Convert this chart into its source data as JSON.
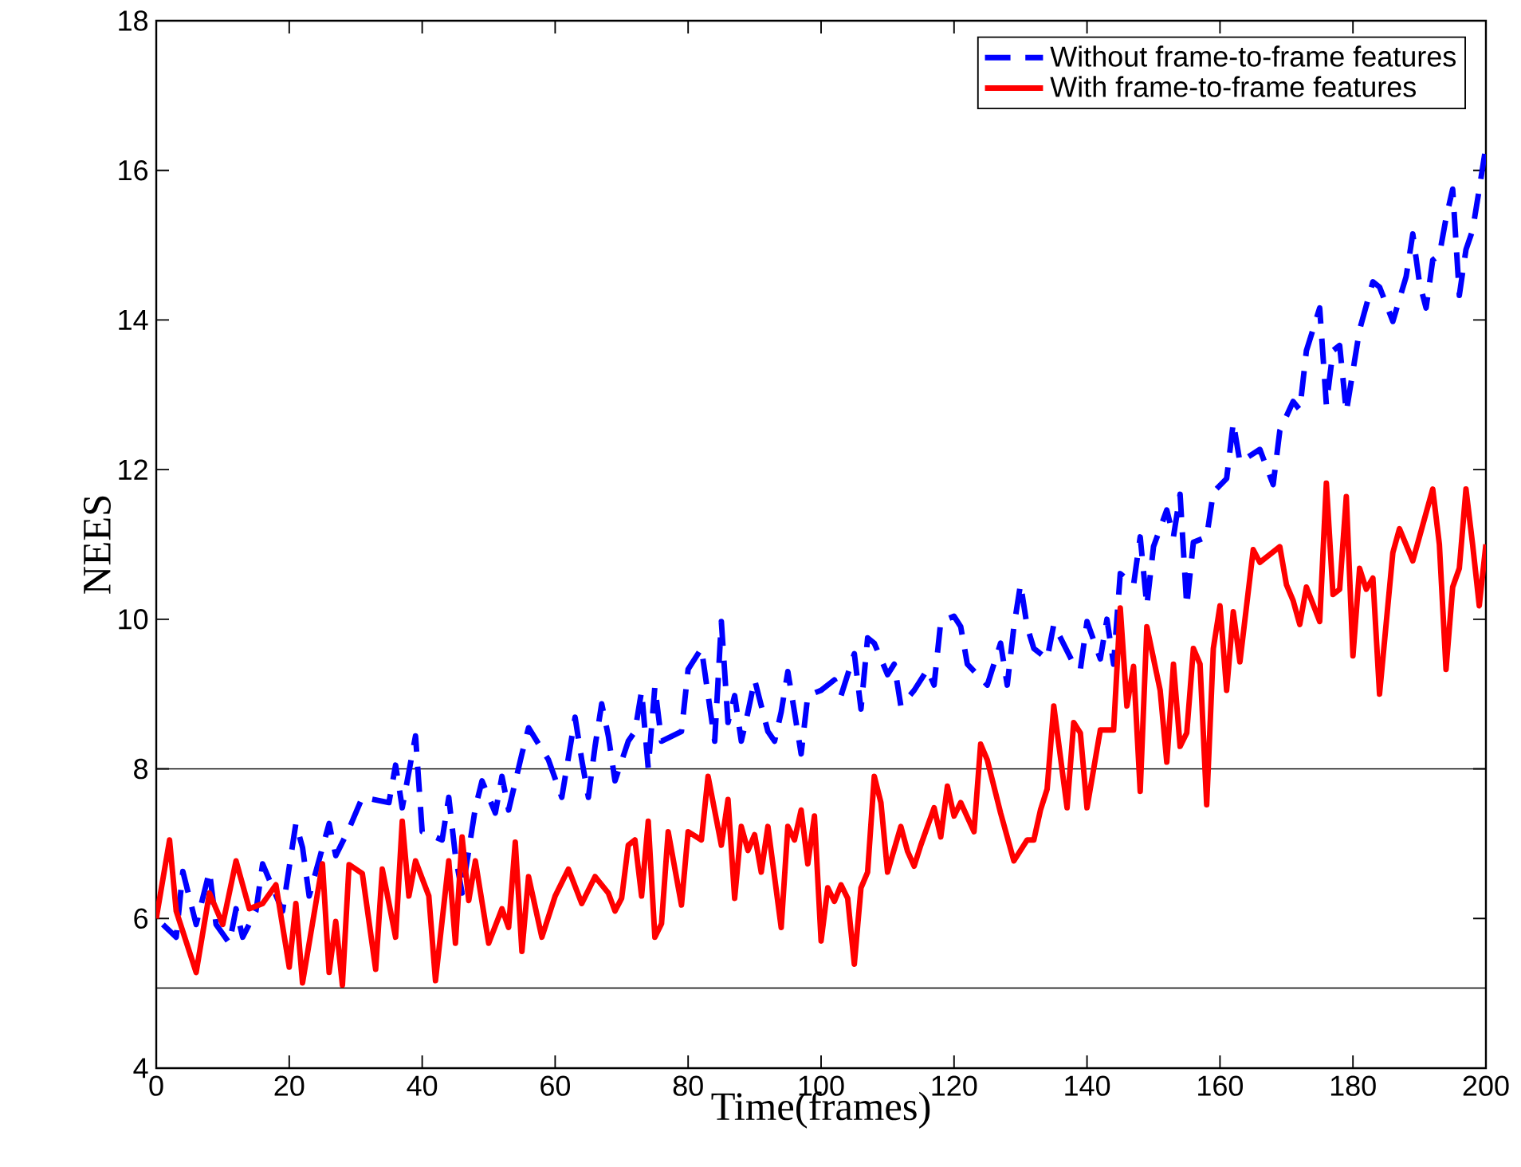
{
  "chart_data": {
    "type": "line",
    "xlabel": "Time(frames)",
    "ylabel": "NEES",
    "xlim": [
      0,
      200
    ],
    "ylim": [
      4,
      18
    ],
    "xticks": [
      0,
      20,
      40,
      60,
      80,
      100,
      120,
      140,
      160,
      180,
      200
    ],
    "yticks": [
      4,
      6,
      8,
      10,
      12,
      14,
      16,
      18
    ],
    "grid": false,
    "legend": "top right",
    "ref_lines": [
      {
        "axis": "y",
        "value": 8,
        "color": "#000000"
      },
      {
        "axis": "y",
        "value": 5.07,
        "color": "#000000"
      }
    ],
    "series": [
      {
        "name": "Without frame-to-frame features",
        "color": "#0000ff",
        "line_style": "dashed",
        "x": [
          1,
          3,
          4,
          6,
          8,
          9,
          11,
          12,
          13,
          15,
          16,
          19,
          21,
          22,
          23,
          26,
          27,
          29,
          31,
          35,
          36,
          37,
          39,
          40,
          43,
          44,
          45,
          46,
          48,
          49,
          51,
          52,
          53,
          55,
          56,
          59,
          61,
          63,
          64,
          65,
          66,
          67,
          68,
          69,
          71,
          72,
          73,
          74,
          75,
          76,
          79,
          80,
          82,
          84,
          85,
          86,
          87,
          88,
          89,
          90,
          92,
          93,
          94,
          95,
          96,
          97,
          98,
          100,
          102,
          103,
          105,
          106,
          107,
          108,
          110,
          111,
          112,
          114,
          116,
          117,
          118,
          120,
          121,
          122,
          125,
          127,
          128,
          129,
          130,
          131,
          132,
          134,
          135,
          138,
          139,
          140,
          142,
          143,
          144,
          145,
          147,
          148,
          149,
          150,
          152,
          153,
          154,
          155,
          156,
          158,
          159,
          161,
          162,
          163,
          166,
          168,
          169,
          171,
          172,
          173,
          175,
          176,
          177,
          178,
          179,
          181,
          183,
          184,
          186,
          188,
          189,
          190,
          191,
          192,
          193,
          194,
          195,
          196,
          197,
          198,
          199,
          200
        ],
        "values": [
          5.92,
          5.75,
          6.63,
          5.92,
          6.63,
          5.92,
          5.67,
          6.13,
          5.75,
          6.1,
          6.73,
          6.1,
          7.27,
          6.95,
          6.3,
          7.27,
          6.84,
          7.2,
          7.62,
          7.55,
          8.05,
          7.48,
          8.44,
          7.16,
          7.05,
          7.62,
          6.84,
          6.34,
          7.48,
          7.84,
          7.41,
          7.9,
          7.45,
          8.2,
          8.55,
          8.12,
          7.62,
          8.69,
          8.12,
          7.62,
          8.3,
          8.87,
          8.44,
          7.84,
          8.37,
          8.5,
          9.04,
          8.01,
          9.1,
          8.37,
          8.5,
          9.33,
          9.61,
          8.37,
          9.97,
          8.62,
          8.98,
          8.37,
          8.76,
          9.19,
          8.5,
          8.37,
          8.76,
          9.3,
          8.76,
          8.2,
          8.98,
          9.05,
          9.19,
          8.98,
          9.54,
          8.8,
          9.75,
          9.68,
          9.26,
          9.4,
          8.84,
          9.05,
          9.33,
          9.12,
          9.97,
          10.04,
          9.9,
          9.4,
          9.12,
          9.68,
          9.12,
          9.9,
          10.47,
          9.9,
          9.61,
          9.47,
          9.93,
          9.4,
          9.33,
          9.97,
          9.47,
          10.0,
          9.4,
          10.61,
          10.46,
          11.1,
          10.18,
          10.97,
          11.46,
          11.1,
          11.67,
          10.18,
          11.03,
          11.1,
          11.7,
          11.88,
          12.63,
          12.1,
          12.27,
          11.8,
          12.52,
          12.91,
          12.8,
          13.59,
          14.16,
          12.87,
          13.59,
          13.66,
          12.77,
          13.87,
          14.51,
          14.44,
          13.98,
          14.58,
          15.15,
          14.5,
          14.16,
          14.8,
          14.87,
          15.36,
          15.75,
          14.33,
          14.94,
          15.2,
          15.75,
          16.32
        ]
      },
      {
        "name": "With frame-to-frame features",
        "color": "#ff0000",
        "line_style": "solid",
        "x": [
          0,
          2,
          3,
          6,
          8,
          10,
          12,
          14,
          16,
          18,
          20,
          21,
          22,
          25,
          26,
          27,
          28,
          29,
          31,
          33,
          34,
          36,
          37,
          38,
          39,
          41,
          42,
          44,
          45,
          46,
          47,
          48,
          50,
          52,
          53,
          54,
          55,
          56,
          58,
          60,
          62,
          64,
          66,
          68,
          69,
          70,
          71,
          72,
          73,
          74,
          75,
          76,
          77,
          79,
          80,
          82,
          83,
          85,
          86,
          87,
          88,
          89,
          90,
          91,
          92,
          94,
          95,
          96,
          97,
          98,
          99,
          100,
          101,
          102,
          103,
          104,
          105,
          106,
          107,
          108,
          109,
          110,
          112,
          113,
          114,
          115,
          117,
          118,
          119,
          120,
          121,
          123,
          124,
          125,
          127,
          129,
          131,
          132,
          133,
          134,
          135,
          137,
          138,
          139,
          140,
          142,
          144,
          145,
          146,
          147,
          148,
          149,
          151,
          152,
          153,
          154,
          155,
          156,
          157,
          158,
          159,
          160,
          161,
          162,
          163,
          165,
          166,
          169,
          170,
          171,
          172,
          173,
          175,
          176,
          177,
          178,
          179,
          180,
          181,
          182,
          183,
          184,
          186,
          187,
          189,
          192,
          193,
          194,
          195,
          196,
          197,
          198,
          199,
          200
        ],
        "values": [
          6.0,
          7.05,
          6.1,
          5.28,
          6.34,
          5.92,
          6.77,
          6.13,
          6.2,
          6.45,
          5.35,
          6.2,
          5.14,
          6.73,
          5.28,
          5.96,
          5.11,
          6.72,
          6.6,
          5.32,
          6.66,
          5.75,
          7.3,
          6.3,
          6.77,
          6.3,
          5.17,
          6.77,
          5.67,
          7.09,
          6.24,
          6.77,
          5.67,
          6.13,
          5.88,
          7.02,
          5.56,
          6.56,
          5.75,
          6.3,
          6.66,
          6.2,
          6.56,
          6.34,
          6.1,
          6.27,
          6.98,
          7.05,
          6.3,
          7.3,
          5.75,
          5.93,
          7.16,
          6.18,
          7.16,
          7.05,
          7.9,
          6.98,
          7.59,
          6.27,
          7.23,
          6.91,
          7.12,
          6.62,
          7.23,
          5.88,
          7.23,
          7.05,
          7.45,
          6.73,
          7.37,
          5.7,
          6.41,
          6.23,
          6.45,
          6.27,
          5.39,
          6.41,
          6.62,
          7.9,
          7.55,
          6.62,
          7.23,
          6.9,
          6.7,
          6.98,
          7.48,
          7.09,
          7.77,
          7.37,
          7.55,
          7.16,
          8.33,
          8.12,
          7.41,
          6.77,
          7.05,
          7.05,
          7.45,
          7.73,
          8.84,
          7.48,
          8.62,
          8.48,
          7.48,
          8.52,
          8.52,
          10.15,
          8.84,
          9.37,
          7.7,
          9.9,
          9.05,
          8.09,
          9.4,
          8.3,
          8.48,
          9.61,
          9.4,
          7.52,
          9.61,
          10.18,
          9.05,
          10.1,
          9.43,
          10.93,
          10.76,
          10.97,
          10.46,
          10.25,
          9.93,
          10.43,
          9.97,
          11.82,
          10.33,
          10.4,
          11.64,
          9.51,
          10.68,
          10.4,
          10.55,
          9.0,
          10.89,
          11.21,
          10.78,
          11.74,
          11.0,
          9.33,
          10.43,
          10.68,
          11.74,
          11.0,
          10.18,
          11.0
        ]
      }
    ]
  }
}
